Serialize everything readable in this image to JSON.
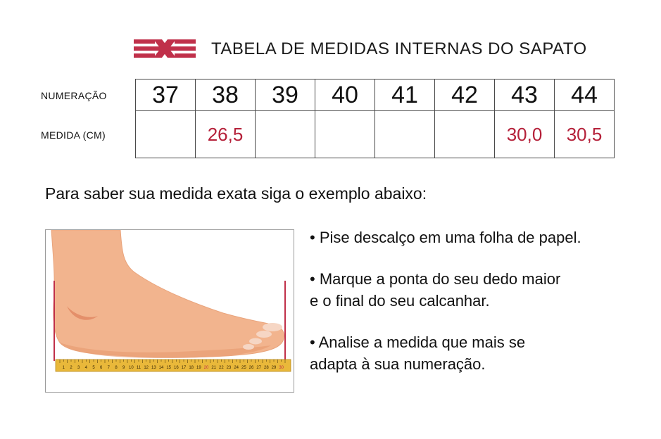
{
  "header": {
    "title": "TABELA DE MEDIDAS INTERNAS DO SAPATO"
  },
  "table": {
    "row_label_sizes": "NUMERAÇÃO",
    "row_label_measures": "MEDIDA (CM)",
    "sizes": [
      "37",
      "38",
      "39",
      "40",
      "41",
      "42",
      "43",
      "44"
    ],
    "measures": [
      "",
      "26,5",
      "",
      "",
      "",
      "",
      "30,0",
      "30,5"
    ]
  },
  "instructions": {
    "heading": "Para saber sua medida exata siga o exemplo abaixo:",
    "steps": [
      {
        "lines": [
          "• Pise descalço em uma folha de papel."
        ]
      },
      {
        "lines": [
          "• Marque a ponta do seu dedo maior",
          "e o final do seu calcanhar."
        ]
      },
      {
        "lines": [
          "• Analise a medida que mais se",
          "adapta à sua numeração."
        ]
      }
    ]
  },
  "ruler": {
    "ticks": [
      "1",
      "2",
      "3",
      "4",
      "5",
      "6",
      "7",
      "8",
      "9",
      "10",
      "11",
      "12",
      "13",
      "14",
      "15",
      "16",
      "17",
      "18",
      "19",
      "20",
      "21",
      "22",
      "23",
      "24",
      "25",
      "26",
      "27",
      "28",
      "29",
      "30"
    ]
  },
  "colors": {
    "accent": "#b5213a",
    "ruler": "#e9b83a",
    "skin": "#f2b48e"
  },
  "icons": {
    "logo": "brand-logo-icon",
    "illustration": "foot-on-ruler-illustration"
  }
}
